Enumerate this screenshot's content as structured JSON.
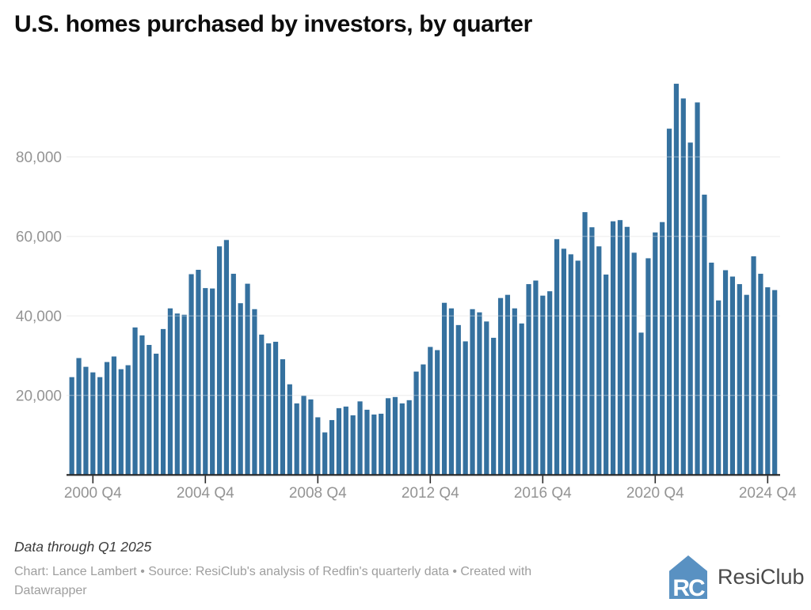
{
  "title": "U.S. homes purchased by investors, by quarter",
  "footer": {
    "note": "Data through Q1 2025",
    "credit": "Chart: Lance Lambert • Source: ResiClub's analysis of Redfin's quarterly data • Created with Datawrapper"
  },
  "logo": {
    "mark": "RC",
    "text": "ResiClub"
  },
  "colors": {
    "bar": "#35719f",
    "grid": "#e2e2e2",
    "grid_overlay": "rgba(255,255,255,0.45)",
    "axis": "#2a2a2a",
    "tick_label": "#949494",
    "title": "#0d0d0d",
    "logo_blue": "#5991c2"
  },
  "chart_data": {
    "type": "bar",
    "title": "U.S. homes purchased by investors, by quarter",
    "xlabel": "",
    "ylabel": "",
    "ylim": [
      0,
      100000
    ],
    "grid": true,
    "legend_position": "none",
    "categories": [
      "2000 Q1",
      "2000 Q2",
      "2000 Q3",
      "2000 Q4",
      "2001 Q1",
      "2001 Q2",
      "2001 Q3",
      "2001 Q4",
      "2002 Q1",
      "2002 Q2",
      "2002 Q3",
      "2002 Q4",
      "2003 Q1",
      "2003 Q2",
      "2003 Q3",
      "2003 Q4",
      "2004 Q1",
      "2004 Q2",
      "2004 Q3",
      "2004 Q4",
      "2005 Q1",
      "2005 Q2",
      "2005 Q3",
      "2005 Q4",
      "2006 Q1",
      "2006 Q2",
      "2006 Q3",
      "2006 Q4",
      "2007 Q1",
      "2007 Q2",
      "2007 Q3",
      "2007 Q4",
      "2008 Q1",
      "2008 Q2",
      "2008 Q3",
      "2008 Q4",
      "2009 Q1",
      "2009 Q2",
      "2009 Q3",
      "2009 Q4",
      "2010 Q1",
      "2010 Q2",
      "2010 Q3",
      "2010 Q4",
      "2011 Q1",
      "2011 Q2",
      "2011 Q3",
      "2011 Q4",
      "2012 Q1",
      "2012 Q2",
      "2012 Q3",
      "2012 Q4",
      "2013 Q1",
      "2013 Q2",
      "2013 Q3",
      "2013 Q4",
      "2014 Q1",
      "2014 Q2",
      "2014 Q3",
      "2014 Q4",
      "2015 Q1",
      "2015 Q2",
      "2015 Q3",
      "2015 Q4",
      "2016 Q1",
      "2016 Q2",
      "2016 Q3",
      "2016 Q4",
      "2017 Q1",
      "2017 Q2",
      "2017 Q3",
      "2017 Q4",
      "2018 Q1",
      "2018 Q2",
      "2018 Q3",
      "2018 Q4",
      "2019 Q1",
      "2019 Q2",
      "2019 Q3",
      "2019 Q4",
      "2020 Q1",
      "2020 Q2",
      "2020 Q3",
      "2020 Q4",
      "2021 Q1",
      "2021 Q2",
      "2021 Q3",
      "2021 Q4",
      "2022 Q1",
      "2022 Q2",
      "2022 Q3",
      "2022 Q4",
      "2023 Q1",
      "2023 Q2",
      "2023 Q3",
      "2023 Q4",
      "2024 Q1",
      "2024 Q2",
      "2024 Q3",
      "2024 Q4",
      "2025 Q1"
    ],
    "values": [
      24600,
      29400,
      27200,
      25800,
      24600,
      28400,
      29800,
      26600,
      27600,
      37100,
      35100,
      32700,
      30500,
      36700,
      41900,
      40600,
      40300,
      50500,
      51600,
      47000,
      46900,
      57500,
      59100,
      50600,
      43200,
      48100,
      41700,
      35300,
      33100,
      33500,
      29100,
      22800,
      18000,
      19900,
      19000,
      14500,
      10700,
      13800,
      16800,
      17200,
      15000,
      18500,
      16400,
      15200,
      15400,
      19300,
      19600,
      18000,
      18800,
      26000,
      27800,
      32200,
      31400,
      43300,
      41900,
      37700,
      33600,
      41700,
      40900,
      38600,
      34500,
      44500,
      45300,
      41900,
      38100,
      48000,
      48900,
      45100,
      46200,
      59300,
      56900,
      55500,
      53900,
      66100,
      62300,
      57500,
      50400,
      63800,
      64100,
      62400,
      55900,
      35800,
      54500,
      61000,
      63600,
      87100,
      98400,
      94700,
      83600,
      93700,
      70500,
      53400,
      43900,
      51500,
      49900,
      48000,
      45300,
      55000,
      50600,
      47200,
      46500
    ],
    "y_ticks": [
      {
        "value": 20000,
        "label": "20,000"
      },
      {
        "value": 40000,
        "label": "40,000"
      },
      {
        "value": 60000,
        "label": "60,000"
      },
      {
        "value": 80000,
        "label": "80,000"
      }
    ],
    "x_ticks": [
      {
        "index": 3,
        "label": "2000 Q4"
      },
      {
        "index": 19,
        "label": "2004 Q4"
      },
      {
        "index": 35,
        "label": "2008 Q4"
      },
      {
        "index": 51,
        "label": "2012 Q4"
      },
      {
        "index": 67,
        "label": "2016 Q4"
      },
      {
        "index": 83,
        "label": "2020 Q4"
      },
      {
        "index": 99,
        "label": "2024 Q4"
      }
    ]
  }
}
